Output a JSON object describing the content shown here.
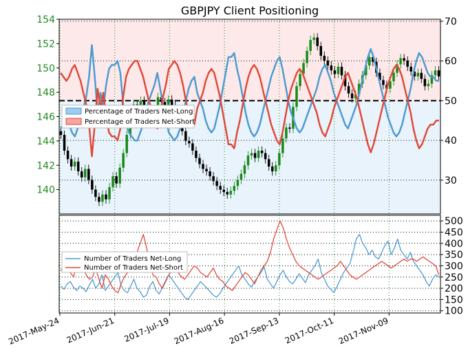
{
  "chart_data": [
    {
      "type": "candlestick+line",
      "title": "GBPJPY Client Positioning",
      "left_axis": {
        "ylim": [
          138,
          154
        ],
        "ticks": [
          "140",
          "142",
          "144",
          "146",
          "148",
          "150",
          "152",
          "154"
        ],
        "color": "#228b22"
      },
      "right_axis": {
        "ylim": [
          21.5,
          70.5
        ],
        "ticks": [
          "30",
          "40",
          "50",
          "60",
          "70"
        ],
        "color": "#000000"
      },
      "legend": {
        "placement": "left",
        "items": [
          {
            "label": "Percentage of Traders Net-Long",
            "color": "#9ecbf0"
          },
          {
            "label": "Percentage of Traders Net-Short",
            "color": "#f4a6a6"
          }
        ]
      },
      "reference_line": 50,
      "x_labels": [
        "2017-May-24",
        "2017-Jun-21",
        "2017-Jul-19",
        "2017-Aug-16",
        "2017-Sep-13",
        "2017-Oct-11",
        "2017-Nov-09"
      ],
      "series": [
        {
          "name": "Percentage of Traders Net-Long",
          "color": "#4e9bd0",
          "values": [
            43,
            44,
            45,
            44,
            42,
            41,
            43,
            45,
            48,
            51,
            56,
            64,
            56,
            47,
            52,
            48,
            54,
            58,
            59,
            59,
            60,
            57,
            49,
            44,
            42,
            41,
            40,
            40,
            42,
            44,
            47,
            50,
            52,
            54,
            57,
            53,
            49,
            46,
            42,
            41,
            40,
            41,
            43,
            46,
            50,
            53,
            55,
            56,
            52,
            50,
            48,
            45,
            43,
            42,
            43,
            46,
            49,
            53,
            57,
            61,
            61,
            62,
            58,
            55,
            51,
            47,
            44,
            42,
            41,
            42,
            44,
            47,
            50,
            53,
            56,
            58,
            60,
            61,
            58,
            54,
            50,
            47,
            45,
            43,
            42,
            43,
            45,
            47,
            49,
            51,
            53,
            56,
            58,
            59,
            57,
            55,
            52,
            50,
            48,
            46,
            44,
            43,
            45,
            47,
            49,
            52,
            55,
            58,
            61,
            63,
            61,
            58,
            55,
            52,
            49,
            46,
            44,
            42,
            41,
            42,
            44,
            47,
            50,
            53,
            57,
            60,
            62,
            61,
            59,
            57,
            56,
            56,
            55,
            55
          ]
        },
        {
          "name": "Percentage of Traders Net-Short",
          "color": "#e04a3a",
          "values": [
            57,
            56,
            55,
            56,
            58,
            59,
            57,
            55,
            52,
            49,
            44,
            36,
            44,
            53,
            48,
            52,
            46,
            42,
            41,
            41,
            40,
            43,
            51,
            56,
            58,
            59,
            60,
            60,
            58,
            56,
            53,
            50,
            48,
            46,
            43,
            47,
            51,
            54,
            58,
            59,
            60,
            59,
            57,
            54,
            50,
            47,
            45,
            44,
            48,
            50,
            52,
            55,
            57,
            58,
            57,
            54,
            51,
            47,
            43,
            39,
            39,
            38,
            42,
            45,
            49,
            53,
            56,
            58,
            59,
            58,
            56,
            53,
            50,
            47,
            44,
            42,
            40,
            39,
            42,
            46,
            50,
            53,
            55,
            57,
            58,
            57,
            55,
            53,
            51,
            49,
            47,
            44,
            42,
            41,
            43,
            45,
            48,
            50,
            52,
            54,
            56,
            57,
            55,
            53,
            51,
            48,
            45,
            42,
            39,
            37,
            39,
            42,
            45,
            48,
            51,
            54,
            56,
            58,
            59,
            58,
            56,
            53,
            50,
            47,
            43,
            40,
            38,
            39,
            41,
            43,
            44,
            44,
            45,
            45
          ]
        }
      ],
      "price_series": {
        "name": "GBPJPY",
        "up_color": "#1a8a1a",
        "down_color": "#000000",
        "close": [
          144.5,
          143.2,
          142.5,
          141.9,
          142.3,
          141.5,
          141.0,
          141.7,
          140.8,
          140.0,
          139.4,
          139.0,
          139.6,
          139.2,
          140.2,
          141.1,
          140.5,
          141.8,
          143.0,
          144.5,
          146.2,
          147.0,
          146.5,
          147.3,
          146.8,
          146.1,
          145.9,
          146.4,
          147.6,
          147.2,
          146.7,
          147.4,
          146.9,
          146.3,
          145.5,
          144.8,
          144.0,
          143.8,
          143.2,
          142.6,
          142.1,
          141.7,
          141.5,
          141.1,
          140.7,
          140.3,
          140.0,
          139.8,
          139.6,
          139.9,
          140.3,
          140.8,
          141.3,
          142.0,
          142.8,
          143.0,
          142.6,
          143.2,
          143.0,
          142.5,
          141.9,
          141.5,
          142.0,
          143.0,
          144.2,
          145.1,
          145.0,
          146.8,
          148.5,
          149.5,
          150.4,
          151.4,
          152.3,
          152.5,
          151.8,
          151.0,
          150.6,
          150.2,
          149.8,
          149.5,
          150.1,
          149.4,
          148.5,
          147.9,
          147.5,
          147.8,
          148.7,
          149.4,
          150.2,
          150.9,
          150.5,
          149.6,
          149.0,
          148.6,
          148.3,
          148.9,
          149.6,
          150.3,
          150.8,
          150.6,
          150.1,
          149.7,
          149.3,
          149.6,
          149.1,
          148.5,
          148.7,
          149.4,
          149.8,
          149.3
        ]
      }
    },
    {
      "type": "line",
      "yticks": [
        "100",
        "150",
        "200",
        "250",
        "300",
        "350",
        "400",
        "450",
        "500"
      ],
      "ylim": [
        90,
        525
      ],
      "legend": {
        "placement": "left",
        "items": [
          {
            "label": "Number of Traders Net-Long",
            "color": "#4e9bd0"
          },
          {
            "label": "Number of Traders Net-Short",
            "color": "#e04a3a"
          }
        ]
      },
      "series": [
        {
          "name": "Number of Traders Net-Long",
          "color": "#4e9bd0",
          "values": [
            210,
            195,
            220,
            230,
            205,
            190,
            210,
            200,
            185,
            215,
            240,
            200,
            220,
            260,
            190,
            210,
            230,
            250,
            270,
            210,
            190,
            180,
            210,
            240,
            200,
            185,
            160,
            170,
            210,
            230,
            190,
            175,
            205,
            235,
            260,
            240,
            220,
            200,
            180,
            160,
            150,
            170,
            190,
            210,
            230,
            215,
            200,
            185,
            170,
            160,
            175,
            200,
            220,
            240,
            260,
            280,
            300,
            260,
            240,
            220,
            205,
            230,
            250,
            270,
            295,
            240,
            220,
            200,
            230,
            260,
            280,
            250,
            230,
            220,
            240,
            265,
            245,
            225,
            260,
            280,
            300,
            330,
            270,
            240,
            210,
            195,
            180,
            210,
            240,
            270,
            290,
            310,
            360,
            420,
            440,
            400,
            380,
            350,
            370,
            340,
            330,
            360,
            390,
            410,
            350,
            380,
            420,
            370,
            350,
            330,
            360,
            320,
            300,
            280,
            260,
            230,
            210,
            240,
            260,
            250
          ]
        },
        {
          "name": "Number of Traders Net-Short",
          "color": "#e04a3a",
          "values": [
            280,
            300,
            320,
            270,
            250,
            300,
            320,
            290,
            260,
            240,
            250,
            290,
            240,
            200,
            260,
            240,
            210,
            190,
            180,
            220,
            250,
            270,
            300,
            320,
            360,
            400,
            440,
            380,
            310,
            260,
            250,
            220,
            200,
            230,
            260,
            280,
            300,
            270,
            250,
            240,
            260,
            280,
            300,
            290,
            270,
            260,
            250,
            270,
            290,
            260,
            240,
            230,
            210,
            200,
            190,
            210,
            230,
            250,
            270,
            260,
            240,
            220,
            250,
            280,
            300,
            320,
            360,
            420,
            460,
            500,
            470,
            420,
            380,
            350,
            320,
            300,
            290,
            280,
            270,
            260,
            250,
            240,
            250,
            260,
            270,
            280,
            290,
            300,
            320,
            300,
            280,
            260,
            250,
            240,
            250,
            260,
            270,
            280,
            290,
            300,
            310,
            320,
            310,
            300,
            290,
            300,
            310,
            320,
            330,
            320,
            330,
            330,
            320,
            330,
            340,
            330,
            320,
            310,
            300,
            260
          ]
        }
      ]
    }
  ]
}
